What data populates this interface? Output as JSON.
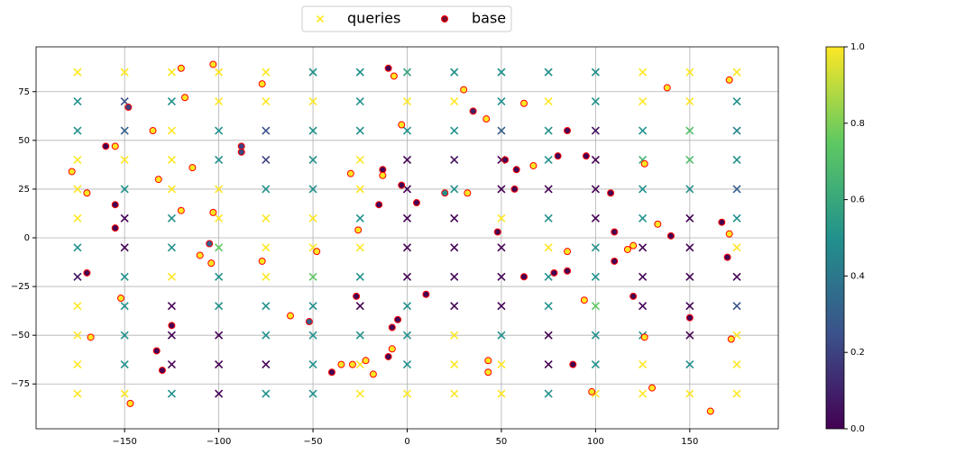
{
  "chart_data": {
    "type": "scatter",
    "xlim": [
      -197,
      197
    ],
    "ylim": [
      -98,
      98
    ],
    "xticks": [
      {
        "value": -150,
        "label": "−150"
      },
      {
        "value": -100,
        "label": "−100"
      },
      {
        "value": -50,
        "label": "−50"
      },
      0,
      50,
      100,
      150
    ],
    "yticks": [
      {
        "value": -75,
        "label": "−75"
      },
      {
        "value": -50,
        "label": "−50"
      },
      {
        "value": -25,
        "label": "−25"
      },
      0,
      25,
      50,
      75
    ],
    "grid": true,
    "colormap": [
      "#440154",
      "#3b528b",
      "#21918c",
      "#5ec962",
      "#fde725"
    ],
    "clim": [
      0,
      1
    ],
    "cticks": [
      {
        "value": 0,
        "label": "0.0"
      },
      {
        "value": 0.2,
        "label": "0.2"
      },
      {
        "value": 0.4,
        "label": "0.4"
      },
      {
        "value": 0.6,
        "label": "0.6"
      },
      {
        "value": 0.8,
        "label": "0.8"
      },
      {
        "value": 1,
        "label": "1.0"
      }
    ],
    "legend": "upper center",
    "series": [
      {
        "name": "queries",
        "marker": "x",
        "color": "#fde725",
        "x": [
          -175,
          -150,
          -125,
          -100,
          -75,
          -50,
          -25,
          0,
          25,
          50,
          75,
          100,
          125,
          150,
          175,
          -175,
          -150,
          -125,
          -100,
          -75,
          -50,
          -25,
          0,
          25,
          50,
          75,
          100,
          125,
          150,
          175,
          -175,
          -150,
          -125,
          -100,
          -75,
          -50,
          -25,
          0,
          25,
          50,
          75,
          100,
          125,
          150,
          175,
          -175,
          -150,
          -125,
          -100,
          -75,
          -50,
          -25,
          0,
          25,
          50,
          75,
          100,
          125,
          150,
          175,
          -175,
          -150,
          -125,
          -100,
          -75,
          -50,
          -25,
          0,
          25,
          50,
          75,
          100,
          125,
          150,
          175,
          -175,
          -150,
          -125,
          -100,
          -75,
          -50,
          -25,
          0,
          25,
          50,
          75,
          100,
          125,
          150,
          175,
          -175,
          -150,
          -125,
          -100,
          -75,
          -50,
          -25,
          0,
          25,
          50,
          75,
          100,
          125,
          150,
          175,
          -175,
          -150,
          -125,
          -100,
          -75,
          -50,
          -25,
          0,
          25,
          50,
          75,
          100,
          125,
          150,
          175,
          -175,
          -150,
          -125,
          -100,
          -75,
          -50,
          -25,
          0,
          25,
          50,
          75,
          100,
          125,
          150,
          175,
          -175,
          -150,
          -125,
          -100,
          -75,
          -50,
          -25,
          0,
          25,
          50,
          75,
          100,
          125,
          150,
          175,
          -175,
          -150,
          -125,
          -100,
          -75,
          -50,
          -25,
          0,
          25,
          50,
          75,
          100,
          125,
          150,
          175,
          -175,
          -150,
          -125,
          -100,
          -75,
          -50,
          -25,
          0,
          25,
          50,
          75,
          100,
          125,
          150,
          175
        ],
        "y": [
          85,
          85,
          85,
          85,
          85,
          85,
          85,
          85,
          85,
          85,
          85,
          85,
          85,
          85,
          85,
          70,
          70,
          70,
          70,
          70,
          70,
          70,
          70,
          70,
          70,
          70,
          70,
          70,
          70,
          70,
          55,
          55,
          55,
          55,
          55,
          55,
          55,
          55,
          55,
          55,
          55,
          55,
          55,
          55,
          55,
          40,
          40,
          40,
          40,
          40,
          40,
          40,
          40,
          40,
          40,
          40,
          40,
          40,
          40,
          40,
          25,
          25,
          25,
          25,
          25,
          25,
          25,
          25,
          25,
          25,
          25,
          25,
          25,
          25,
          25,
          10,
          10,
          10,
          10,
          10,
          10,
          10,
          10,
          10,
          10,
          10,
          10,
          10,
          10,
          10,
          -5,
          -5,
          -5,
          -5,
          -5,
          -5,
          -5,
          -5,
          -5,
          -5,
          -5,
          -5,
          -5,
          -5,
          -5,
          -20,
          -20,
          -20,
          -20,
          -20,
          -20,
          -20,
          -20,
          -20,
          -20,
          -20,
          -20,
          -20,
          -20,
          -20,
          -35,
          -35,
          -35,
          -35,
          -35,
          -35,
          -35,
          -35,
          -35,
          -35,
          -35,
          -35,
          -35,
          -35,
          -35,
          -50,
          -50,
          -50,
          -50,
          -50,
          -50,
          -50,
          -50,
          -50,
          -50,
          -50,
          -50,
          -50,
          -50,
          -50,
          -65,
          -65,
          -65,
          -65,
          -65,
          -65,
          -65,
          -65,
          -65,
          -65,
          -65,
          -65,
          -65,
          -65,
          -65,
          -80,
          -80,
          -80,
          -80,
          -80,
          -80,
          -80,
          -80,
          -80,
          -80,
          -80,
          -80,
          -80,
          -80,
          -80
        ],
        "values": [
          1,
          1,
          1,
          1,
          1,
          0.5,
          0.5,
          0.6,
          0.5,
          0.5,
          0.5,
          0.5,
          1,
          1,
          1,
          0.5,
          0.25,
          0.5,
          1,
          1,
          1,
          0.5,
          1,
          1,
          0.5,
          1,
          0.5,
          1,
          1,
          0.5,
          0.5,
          0.3,
          1,
          0.5,
          0.25,
          0.5,
          0.5,
          0.5,
          0.5,
          0.3,
          0.5,
          0.05,
          0.5,
          0.7,
          0.45,
          1,
          1,
          1,
          0.5,
          0.2,
          0.5,
          1,
          0,
          0.05,
          0,
          0.5,
          0,
          0.65,
          0.7,
          0.5,
          1,
          0.5,
          1,
          1,
          0.5,
          0.5,
          1,
          0,
          0.5,
          0,
          0,
          0,
          0.5,
          0.5,
          0.3,
          1,
          0,
          0.5,
          1,
          1,
          1,
          0.5,
          0,
          0,
          1,
          0.5,
          0,
          0.5,
          0,
          0.5,
          0.5,
          0,
          0.5,
          0.75,
          1,
          1,
          1,
          0,
          0,
          0,
          1,
          0.5,
          0,
          0,
          1,
          0.05,
          0.5,
          1,
          0.5,
          1,
          0.75,
          0.5,
          0,
          0,
          0,
          0.5,
          0.5,
          0,
          0,
          0,
          1,
          0.5,
          0,
          0.5,
          0.5,
          0.5,
          0,
          0.5,
          0,
          0,
          0.5,
          0.75,
          0,
          0,
          0.25,
          1,
          0.5,
          0,
          0,
          0.5,
          0.5,
          0.5,
          0.5,
          1,
          0.5,
          0,
          0.5,
          0.5,
          0,
          1,
          1,
          0.5,
          0,
          0,
          0,
          0.5,
          1,
          0.5,
          1,
          1,
          0,
          0.5,
          1,
          0.5,
          1,
          1,
          1,
          0.5,
          0,
          0.5,
          0.5,
          1,
          1,
          1,
          1,
          0.5,
          1,
          1,
          1,
          1
        ]
      },
      {
        "name": "base",
        "marker": "o",
        "color": "#7a0c2e",
        "edgecolor": "#ff0000",
        "x": [
          -103,
          -120,
          -77,
          -10,
          -7,
          30,
          138,
          171,
          -148,
          -118,
          -135,
          -160,
          -155,
          -88,
          -88,
          -30,
          -13,
          -13,
          -15,
          -3,
          -3,
          5,
          20,
          32,
          42,
          35,
          52,
          58,
          57,
          67,
          62,
          80,
          85,
          95,
          108,
          110,
          126,
          133,
          140,
          167,
          171,
          -178,
          -170,
          -155,
          -155,
          -132,
          -120,
          -114,
          -103,
          -105,
          -110,
          -104,
          -77,
          -48,
          -26,
          -170,
          -168,
          -152,
          -147,
          -133,
          -130,
          -125,
          -62,
          -52,
          -40,
          -35,
          -29,
          -27,
          -22,
          -18,
          -10,
          -8,
          -8,
          -5,
          10,
          43,
          43,
          48,
          62,
          78,
          85,
          85,
          88,
          94,
          98,
          110,
          117,
          120,
          120,
          126,
          130,
          150,
          161,
          170,
          172
        ],
        "y": [
          89,
          87,
          79,
          87,
          83,
          76,
          77,
          81,
          67,
          72,
          55,
          47,
          47,
          47,
          44,
          33,
          35,
          32,
          17,
          58,
          27,
          18,
          23,
          23,
          61,
          65,
          40,
          35,
          25,
          37,
          69,
          42,
          55,
          42,
          23,
          3,
          38,
          7,
          1,
          8,
          2,
          34,
          23,
          17,
          5,
          30,
          14,
          36,
          13,
          -3,
          -9,
          -13,
          -12,
          -7,
          4,
          -18,
          -51,
          -31,
          -85,
          -58,
          -68,
          -45,
          -40,
          -43,
          -69,
          -65,
          -65,
          -30,
          -63,
          -70,
          -61,
          -57,
          -46,
          -42,
          -29,
          -63,
          -69,
          3,
          -20,
          -18,
          -7,
          -17,
          -65,
          -32,
          -79,
          -12,
          -6,
          -4,
          -30,
          -51,
          -77,
          -41,
          -89,
          -10,
          -52
        ],
        "values": [
          1,
          1,
          1,
          0,
          1,
          1,
          1,
          1,
          0.2,
          1,
          1,
          0,
          1,
          0.2,
          0.2,
          1,
          0,
          1,
          0,
          1,
          0,
          0,
          0.5,
          1,
          1,
          0.1,
          0,
          0,
          0,
          1,
          1,
          0,
          0,
          0,
          0,
          0,
          1,
          1,
          0,
          0,
          1,
          1,
          1,
          0,
          0,
          1,
          1,
          1,
          1,
          0.3,
          1,
          1,
          1,
          1,
          1,
          0,
          1,
          1,
          1,
          0,
          0,
          0,
          1,
          0.3,
          0,
          1,
          1,
          0,
          1,
          1,
          0,
          1,
          0,
          0,
          0,
          1,
          1,
          0,
          0,
          0,
          1,
          0,
          0,
          1,
          1,
          0,
          1,
          1,
          0,
          1,
          1,
          0,
          1,
          0,
          1
        ]
      }
    ]
  }
}
